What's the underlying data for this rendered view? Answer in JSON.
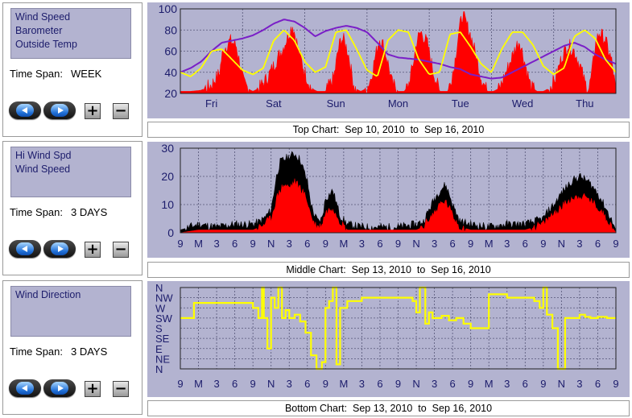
{
  "panels": [
    {
      "legend": [
        "Wind Speed",
        "Barometer",
        "Outside Temp"
      ],
      "time_span_label": "Time Span:",
      "time_span_value": "WEEK",
      "caption": "Top Chart:  Sep 10, 2010  to  Sep 16, 2010",
      "buttons": {
        "prev": "previous-period",
        "next": "next-period",
        "zoom_in": "+",
        "zoom_out": "−"
      }
    },
    {
      "legend": [
        "Hi Wind Spd",
        "Wind Speed"
      ],
      "time_span_label": "Time Span:",
      "time_span_value": "3 DAYS",
      "caption": "Middle Chart:  Sep 13, 2010  to  Sep 16, 2010",
      "buttons": {
        "prev": "previous-period",
        "next": "next-period",
        "zoom_in": "+",
        "zoom_out": "−"
      }
    },
    {
      "legend": [
        "Wind Direction"
      ],
      "time_span_label": "Time Span:",
      "time_span_value": "3 DAYS",
      "caption": "Bottom Chart:  Sep 13, 2010  to  Sep 16, 2010",
      "buttons": {
        "prev": "previous-period",
        "next": "next-period",
        "zoom_in": "+",
        "zoom_out": "−"
      }
    }
  ],
  "colors": {
    "plot_bg": "#b3b3d0",
    "grid": "#555577",
    "wind_speed": "#ff0000",
    "hi_wind": "#000000",
    "barometer": "#7a1fc7",
    "outside_temp": "#ffff00",
    "wind_direction": "#ffff00",
    "axis_label": "#1c1c6b"
  },
  "chart_data": [
    {
      "type": "line",
      "name": "top",
      "x_labels": [
        "Fri",
        "Sat",
        "Sun",
        "Mon",
        "Tue",
        "Wed",
        "Thu"
      ],
      "ylim": [
        20,
        100
      ],
      "y_ticks": [
        20,
        40,
        60,
        80,
        100
      ],
      "grid": true,
      "series": [
        {
          "name": "Wind Speed",
          "style": "filled-area",
          "color_key": "wind_speed",
          "x": [
            0,
            0.5,
            1,
            1.5,
            1.9,
            2.0,
            2.1,
            2.4,
            2.7,
            2.9,
            3.05,
            3.3,
            3.5,
            3.8,
            4.2,
            4.6,
            5.0,
            5.3,
            5.4,
            5.5,
            5.6,
            5.7,
            6.0,
            6.3,
            6.6,
            7.0,
            7.4,
            7.6,
            7.75,
            7.9,
            8.1,
            8.25,
            8.4,
            8.7,
            9.0,
            9.2,
            9.4,
            9.6,
            9.8,
            10.0,
            10.2,
            10.5,
            10.8,
            11.0,
            11.2,
            11.4,
            11.6,
            11.9,
            12.2,
            12.5,
            12.9,
            13.2,
            13.4,
            13.6,
            13.8,
            14.0,
            14.2,
            14.5,
            14.8,
            15.1,
            15.4,
            15.7,
            16.0,
            16.2,
            16.35,
            16.5,
            16.7,
            16.9,
            17.2,
            17.5,
            17.8,
            18.1,
            18.4,
            18.7,
            19.0,
            19.3,
            19.5,
            19.7,
            19.85,
            20.0,
            20.2,
            20.5,
            20.8,
            21.0
          ],
          "values": [
            22,
            22,
            23,
            28,
            40,
            55,
            62,
            70,
            65,
            45,
            30,
            24,
            22,
            25,
            35,
            50,
            65,
            80,
            85,
            78,
            70,
            60,
            40,
            25,
            22,
            22,
            35,
            60,
            72,
            70,
            58,
            40,
            25,
            22,
            25,
            35,
            55,
            72,
            65,
            50,
            30,
            22,
            22,
            28,
            45,
            70,
            78,
            68,
            40,
            22,
            22,
            45,
            75,
            95,
            85,
            75,
            60,
            35,
            22,
            22,
            25,
            40,
            55,
            65,
            70,
            58,
            42,
            26,
            22,
            22,
            25,
            35,
            55,
            66,
            60,
            45,
            30,
            24,
            40,
            66,
            78,
            70,
            50,
            22
          ]
        },
        {
          "name": "Barometer",
          "style": "line",
          "color_key": "barometer",
          "x": [
            0,
            0.5,
            1,
            1.5,
            2,
            2.5,
            3,
            3.5,
            4,
            4.5,
            5,
            5.5,
            6,
            6.5,
            7,
            7.5,
            8,
            8.5,
            9,
            9.5,
            10,
            10.5,
            11,
            11.5,
            12,
            12.5,
            13,
            13.5,
            14,
            14.5,
            15,
            15.5,
            16,
            16.5,
            17,
            17.5,
            18,
            18.5,
            19,
            19.5,
            20,
            20.5,
            21
          ],
          "values": [
            40,
            44,
            50,
            60,
            68,
            70,
            72,
            75,
            80,
            86,
            90,
            88,
            82,
            74,
            79,
            82,
            84,
            82,
            78,
            68,
            57,
            54,
            53,
            52,
            50,
            48,
            45,
            43,
            38,
            36,
            34,
            35,
            40,
            45,
            50,
            55,
            60,
            65,
            68,
            64,
            57,
            52,
            48
          ]
        },
        {
          "name": "Outside Temp",
          "style": "line",
          "color_key": "outside_temp",
          "x": [
            0,
            0.5,
            1,
            1.5,
            2,
            2.5,
            3,
            3.5,
            4,
            4.5,
            5,
            5.5,
            6,
            6.5,
            7,
            7.5,
            8,
            8.5,
            9,
            9.5,
            10,
            10.5,
            11,
            11.5,
            12,
            12.5,
            13,
            13.5,
            14,
            14.5,
            15,
            15.5,
            16,
            16.5,
            17,
            17.5,
            18,
            18.5,
            19,
            19.5,
            20,
            20.5,
            21
          ],
          "values": [
            40,
            36,
            44,
            60,
            62,
            52,
            42,
            38,
            44,
            70,
            80,
            70,
            50,
            40,
            45,
            78,
            80,
            62,
            42,
            36,
            70,
            80,
            78,
            52,
            38,
            40,
            76,
            78,
            64,
            48,
            40,
            62,
            78,
            78,
            66,
            46,
            38,
            44,
            74,
            80,
            72,
            52,
            40
          ]
        }
      ]
    },
    {
      "type": "area",
      "name": "middle",
      "x_labels": [
        "9",
        "M",
        "3",
        "6",
        "9",
        "N",
        "3",
        "6",
        "9",
        "M",
        "3",
        "6",
        "9",
        "N",
        "3",
        "6",
        "9",
        "M",
        "3",
        "6",
        "9",
        "N",
        "3",
        "6",
        "9"
      ],
      "ylim": [
        0,
        30
      ],
      "y_ticks": [
        0,
        10,
        20,
        30
      ],
      "grid": true,
      "series": [
        {
          "name": "Hi Wind Spd",
          "color_key": "hi_wind",
          "x": [
            0,
            1,
            2,
            3,
            4,
            4.4,
            4.6,
            5,
            5.3,
            5.5,
            5.7,
            6,
            6.3,
            6.6,
            6.8,
            7,
            7.2,
            7.4,
            7.6,
            7.8,
            8,
            8.4,
            8.8,
            9.2,
            10,
            11,
            12,
            13,
            13.4,
            13.7,
            14,
            14.3,
            14.6,
            14.8,
            15,
            15.4,
            16,
            17,
            18,
            19,
            19.5,
            20,
            20.3,
            20.6,
            21,
            21.5,
            22,
            22.5,
            23,
            23.5,
            24
          ],
          "values": [
            1,
            3,
            2,
            3,
            3,
            4,
            5,
            8,
            20,
            25,
            26,
            27,
            28,
            26,
            22,
            18,
            10,
            6,
            4,
            5,
            12,
            15,
            6,
            3,
            2,
            2,
            2,
            3,
            4,
            8,
            12,
            15,
            17,
            14,
            10,
            4,
            3,
            2,
            3,
            3,
            4,
            5,
            8,
            10,
            14,
            18,
            20,
            18,
            14,
            8,
            1
          ]
        },
        {
          "name": "Wind Speed",
          "color_key": "wind_speed",
          "x": [
            0,
            1,
            2,
            3,
            4,
            4.4,
            4.6,
            5,
            5.3,
            5.5,
            5.7,
            6,
            6.3,
            6.6,
            6.8,
            7,
            7.2,
            7.4,
            7.6,
            7.8,
            8,
            8.4,
            8.8,
            9.2,
            10,
            11,
            12,
            13,
            13.4,
            13.7,
            14,
            14.3,
            14.6,
            14.8,
            15,
            15.4,
            16,
            17,
            18,
            19,
            19.5,
            20,
            20.3,
            20.6,
            21,
            21.5,
            22,
            22.5,
            23,
            23.5,
            24
          ],
          "values": [
            0,
            1,
            1,
            1,
            1,
            2,
            3,
            5,
            12,
            15,
            17,
            16,
            18,
            16,
            14,
            11,
            6,
            3,
            2,
            3,
            7,
            9,
            4,
            1,
            1,
            1,
            1,
            1,
            2,
            5,
            7,
            10,
            11,
            9,
            6,
            2,
            1,
            1,
            1,
            1,
            2,
            3,
            5,
            7,
            9,
            12,
            13,
            12,
            9,
            5,
            0
          ]
        }
      ]
    },
    {
      "type": "line",
      "name": "bottom",
      "x_labels": [
        "9",
        "M",
        "3",
        "6",
        "9",
        "N",
        "3",
        "6",
        "9",
        "M",
        "3",
        "6",
        "9",
        "N",
        "3",
        "6",
        "9",
        "M",
        "3",
        "6",
        "9",
        "N",
        "3",
        "6",
        "9"
      ],
      "y_ticks": [
        "N",
        "NW",
        "W",
        "SW",
        "S",
        "SE",
        "E",
        "NE",
        "N"
      ],
      "grid": true,
      "series": [
        {
          "name": "Wind Direction",
          "color_key": "wind_direction",
          "style": "step",
          "x": [
            0,
            0.7,
            0.75,
            1.0,
            2.0,
            3.0,
            3.8,
            4.0,
            4.3,
            4.5,
            4.6,
            4.8,
            5.0,
            5.2,
            5.4,
            5.6,
            5.8,
            6.0,
            6.3,
            6.6,
            6.9,
            7.2,
            7.5,
            7.8,
            8.0,
            8.2,
            8.4,
            8.6,
            8.8,
            9.0,
            9.2,
            10.0,
            11.0,
            12.0,
            12.8,
            13.0,
            13.2,
            13.5,
            13.7,
            13.9,
            14.1,
            14.4,
            14.8,
            15.2,
            15.6,
            16.0,
            17.0,
            18.0,
            19.0,
            19.5,
            19.8,
            20.0,
            20.2,
            20.5,
            20.8,
            21.2,
            21.6,
            22.0,
            22.3,
            22.6,
            23.0,
            23.5,
            24.0
          ],
          "values_deg": [
            225,
            225,
            292,
            292,
            292,
            292,
            292,
            270,
            225,
            0,
            225,
            90,
            315,
            270,
            0,
            225,
            260,
            225,
            240,
            210,
            160,
            60,
            0,
            30,
            270,
            300,
            0,
            20,
            270,
            270,
            300,
            315,
            315,
            315,
            300,
            250,
            0,
            200,
            250,
            225,
            225,
            235,
            215,
            225,
            200,
            180,
            330,
            315,
            315,
            300,
            270,
            0,
            240,
            180,
            0,
            225,
            225,
            240,
            230,
            225,
            230,
            225,
            225
          ]
        }
      ]
    }
  ]
}
